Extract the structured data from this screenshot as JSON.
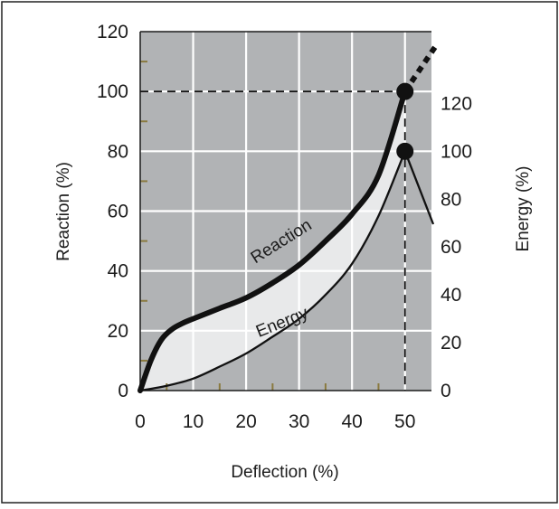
{
  "chart_data": {
    "type": "line",
    "xlabel": "Deflection (%)",
    "ylabel_left": "Reaction (%)",
    "ylabel_right": "Energy (%)",
    "xlim": [
      0,
      55
    ],
    "ylim_left": [
      0,
      120
    ],
    "ylim_right": [
      0,
      150
    ],
    "xticks": [
      0,
      10,
      20,
      30,
      40,
      50
    ],
    "yticks_left": [
      0,
      20,
      40,
      60,
      80,
      100,
      120
    ],
    "yticks_right": [
      0,
      20,
      40,
      60,
      80,
      100,
      120
    ],
    "grid": true,
    "series": [
      {
        "name": "Reaction",
        "axis": "left",
        "style": "thick",
        "x": [
          0,
          2,
          4,
          6,
          8,
          10,
          15,
          20,
          25,
          30,
          35,
          40,
          45,
          50
        ],
        "y": [
          0,
          10,
          17,
          20.5,
          22.5,
          24,
          27.5,
          31,
          36,
          42,
          50,
          59,
          72,
          100
        ]
      },
      {
        "name": "Energy",
        "axis": "right",
        "style": "thin",
        "x": [
          0,
          5,
          10,
          15,
          20,
          25,
          30,
          35,
          40,
          45,
          50
        ],
        "y": [
          0,
          2,
          5,
          10,
          15.5,
          22.5,
          30,
          40,
          53,
          73,
          100
        ]
      }
    ],
    "reference_point": {
      "x": 50,
      "reaction": 100,
      "energy": 100
    }
  }
}
